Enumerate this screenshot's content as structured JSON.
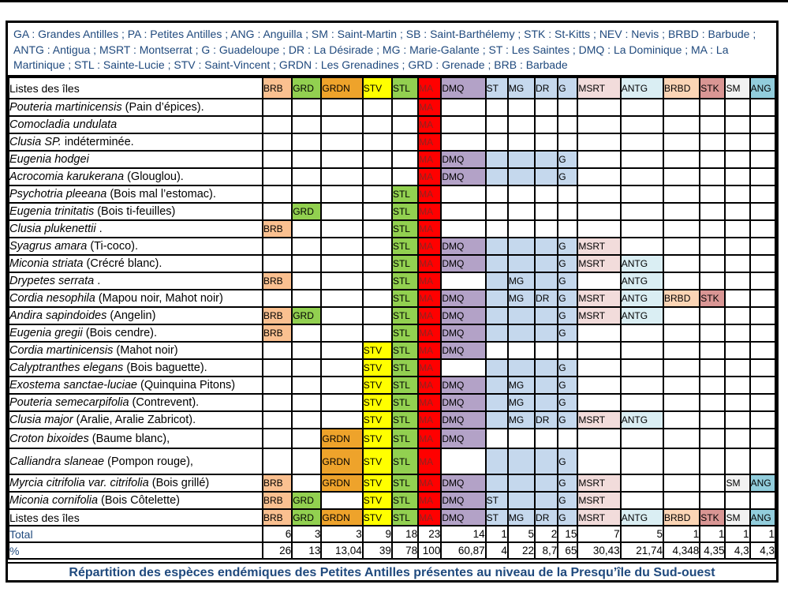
{
  "legend_text": "GA : Grandes Antilles ; PA : Petites Antilles ; ANG : Anguilla ; SM : Saint-Martin ; SB : Saint-Barthélemy ; STK : St-Kitts ; NEV : Nevis ; BRBD : Barbude ; ANTG : Antigua ; MSRT : Montserrat ; G : Guadeloupe ; DR : La Désirade ; MG : Marie-Galante ; ST : Les Saintes ; DMQ : La Dominique ; MA : La Martinique ; STL : Sainte-Lucie ; STV : Saint-Vincent ; GRDN : Les Grenadines ; GRD : Grenade ; BRB : Barbade",
  "caption": "Répartition des espèces endémiques des Petites Antilles présentes au niveau de la Presqu’île du Sud-ouest",
  "colors": {
    "accent_text": "#1F497D",
    "ma_text": "#8E2420",
    "grid": "#000000"
  },
  "table": {
    "corner_label": "Listes des îles",
    "footer_corner_label": "Listes des îles",
    "total_label": "Total",
    "percent_label": "%",
    "columns": [
      {
        "code": "BRB",
        "color": "#FAC090"
      },
      {
        "code": "GRD",
        "color": "#92D050"
      },
      {
        "code": "GRDN",
        "color": "#EEA32B"
      },
      {
        "code": "STV",
        "color": "#FFFF00"
      },
      {
        "code": "STL",
        "color": "#92D050"
      },
      {
        "code": "MA",
        "color": "#FF0000"
      },
      {
        "code": "DMQ",
        "color": "#B3A2C7"
      },
      {
        "code": "ST",
        "color": "#C5D8ED"
      },
      {
        "code": "MG",
        "color": "#C5D8ED"
      },
      {
        "code": "DR",
        "color": "#C5D8ED"
      },
      {
        "code": "G",
        "color": "#C5D8ED"
      },
      {
        "code": "MSRT",
        "color": "#F2DCDB"
      },
      {
        "code": "ANTG",
        "color": "#DAEEF3"
      },
      {
        "code": "BRBD",
        "color": "#FBD5B5"
      },
      {
        "code": "STK",
        "color": "#D99694"
      },
      {
        "code": "SM",
        "color": "#F2F2F2"
      },
      {
        "code": "ANG",
        "color": "#92CDDC"
      }
    ],
    "rows": [
      {
        "sci": "Pouteria martinicensis",
        "common": "(Pain d’épices).",
        "cells": [
          0,
          0,
          0,
          0,
          0,
          2,
          0,
          0,
          0,
          0,
          0,
          0,
          0,
          0,
          0,
          0,
          0
        ]
      },
      {
        "sci": "Comocladia undulata",
        "common": "",
        "cells": [
          0,
          0,
          0,
          0,
          0,
          2,
          0,
          0,
          0,
          0,
          0,
          0,
          0,
          0,
          0,
          0,
          0
        ]
      },
      {
        "sci": "Clusia SP.",
        "common": "indéterminée.",
        "cells": [
          0,
          0,
          0,
          0,
          0,
          2,
          0,
          0,
          0,
          0,
          0,
          0,
          0,
          0,
          0,
          0,
          0
        ]
      },
      {
        "sci": "Eugenia hodgei",
        "common": "",
        "cells": [
          0,
          0,
          0,
          0,
          0,
          2,
          2,
          1,
          1,
          1,
          2,
          0,
          0,
          0,
          0,
          0,
          0
        ]
      },
      {
        "sci": "Acrocomia karukerana",
        "common": "(Glouglou).",
        "cells": [
          0,
          0,
          0,
          0,
          0,
          2,
          2,
          1,
          1,
          1,
          2,
          0,
          0,
          0,
          0,
          0,
          0
        ]
      },
      {
        "sci": "Psychotria pleeana",
        "common": "(Bois mal l’estomac).",
        "cells": [
          0,
          0,
          0,
          0,
          2,
          2,
          0,
          0,
          0,
          0,
          0,
          0,
          0,
          0,
          0,
          0,
          0
        ]
      },
      {
        "sci": "Eugenia trinitatis",
        "common": "(Bois ti-feuilles)",
        "cells": [
          0,
          2,
          0,
          0,
          2,
          2,
          0,
          0,
          0,
          0,
          0,
          0,
          0,
          0,
          0,
          0,
          0
        ]
      },
      {
        "sci": "Clusia plukenettii",
        "common": ".",
        "cells": [
          2,
          0,
          0,
          0,
          2,
          2,
          0,
          0,
          0,
          0,
          0,
          0,
          0,
          0,
          0,
          0,
          0
        ]
      },
      {
        "sci": "Syagrus amara",
        "common": "(Ti-coco).",
        "cells": [
          0,
          0,
          0,
          0,
          2,
          2,
          2,
          1,
          1,
          1,
          2,
          2,
          0,
          0,
          0,
          0,
          0
        ]
      },
      {
        "sci": "Miconia striata",
        "common": "(Crécré blanc).",
        "cells": [
          0,
          0,
          0,
          0,
          2,
          2,
          2,
          1,
          1,
          1,
          2,
          2,
          2,
          0,
          0,
          0,
          0
        ]
      },
      {
        "sci": "Drypetes serrata",
        "common": ".",
        "cells": [
          2,
          0,
          0,
          0,
          2,
          2,
          0,
          1,
          2,
          1,
          2,
          0,
          2,
          0,
          0,
          0,
          0
        ]
      },
      {
        "sci": "Cordia nesophila",
        "common": "(Mapou noir, Mahot noir)",
        "cells": [
          0,
          0,
          0,
          0,
          2,
          2,
          2,
          1,
          2,
          2,
          2,
          2,
          2,
          2,
          2,
          0,
          0
        ]
      },
      {
        "sci": "Andira sapindoides",
        "common": "(Angelin)",
        "cells": [
          2,
          2,
          0,
          0,
          2,
          2,
          2,
          1,
          1,
          1,
          2,
          2,
          2,
          0,
          0,
          0,
          0
        ]
      },
      {
        "sci": "Eugenia gregii",
        "common": "(Bois cendre).",
        "cells": [
          2,
          0,
          0,
          0,
          2,
          2,
          2,
          1,
          1,
          1,
          2,
          0,
          0,
          0,
          0,
          0,
          0
        ]
      },
      {
        "sci": "Cordia martinicensis",
        "common": "(Mahot noir)",
        "cells": [
          0,
          0,
          0,
          2,
          2,
          2,
          2,
          0,
          0,
          0,
          0,
          0,
          0,
          0,
          0,
          0,
          0
        ]
      },
      {
        "sci": "Calyptranthes elegans",
        "common": "(Bois baguette).",
        "cells": [
          0,
          0,
          0,
          2,
          2,
          2,
          0,
          1,
          1,
          1,
          2,
          0,
          0,
          0,
          0,
          0,
          0
        ]
      },
      {
        "sci": "Exostema sanctae-luciae",
        "common": "(Quinquina Pitons)",
        "cells": [
          0,
          0,
          0,
          2,
          2,
          2,
          2,
          1,
          2,
          1,
          2,
          0,
          0,
          0,
          0,
          0,
          0
        ]
      },
      {
        "sci": "Pouteria semecarpifolia",
        "common": "(Contrevent).",
        "cells": [
          0,
          0,
          0,
          2,
          2,
          2,
          2,
          1,
          2,
          1,
          2,
          0,
          0,
          0,
          0,
          0,
          0
        ]
      },
      {
        "sci": "Clusia major",
        "common": "(Aralie, Aralie Zabricot).",
        "cells": [
          0,
          0,
          0,
          2,
          2,
          2,
          2,
          1,
          2,
          2,
          2,
          2,
          2,
          0,
          0,
          0,
          0
        ]
      },
      {
        "sci": "Croton bixoides",
        "common": "(Baume blanc),",
        "cells": [
          0,
          0,
          2,
          2,
          2,
          2,
          2,
          0,
          0,
          0,
          0,
          0,
          0,
          0,
          0,
          0,
          0
        ]
      },
      {
        "sci": "Calliandra slaneae",
        "common": "(Pompon rouge),",
        "cells": [
          0,
          0,
          2,
          2,
          2,
          2,
          0,
          1,
          1,
          1,
          2,
          0,
          0,
          0,
          0,
          0,
          0
        ]
      },
      {
        "sci": "Myrcia citrifolia var. citrifolia",
        "common": "(Bois grillé)",
        "cells": [
          2,
          0,
          2,
          2,
          2,
          2,
          2,
          1,
          1,
          1,
          2,
          2,
          0,
          0,
          0,
          2,
          2
        ]
      },
      {
        "sci": "Miconia cornifolia",
        "common": "(Bois Côtelette)",
        "cells": [
          2,
          2,
          0,
          2,
          2,
          2,
          2,
          2,
          1,
          1,
          2,
          2,
          0,
          0,
          0,
          0,
          0
        ]
      }
    ],
    "totals": [
      "6",
      "3",
      "3",
      "9",
      "18",
      "23",
      "14",
      "1",
      "5",
      "2",
      "15",
      "7",
      "5",
      "1",
      "1",
      "1",
      "1"
    ],
    "percents": [
      "26",
      "13",
      "13,04",
      "39",
      "78",
      "100",
      "60,87",
      "4",
      "22",
      "8,7",
      "65",
      "30,43",
      "21,74",
      "4,348",
      "4,35",
      "4,3",
      "4,3"
    ]
  }
}
